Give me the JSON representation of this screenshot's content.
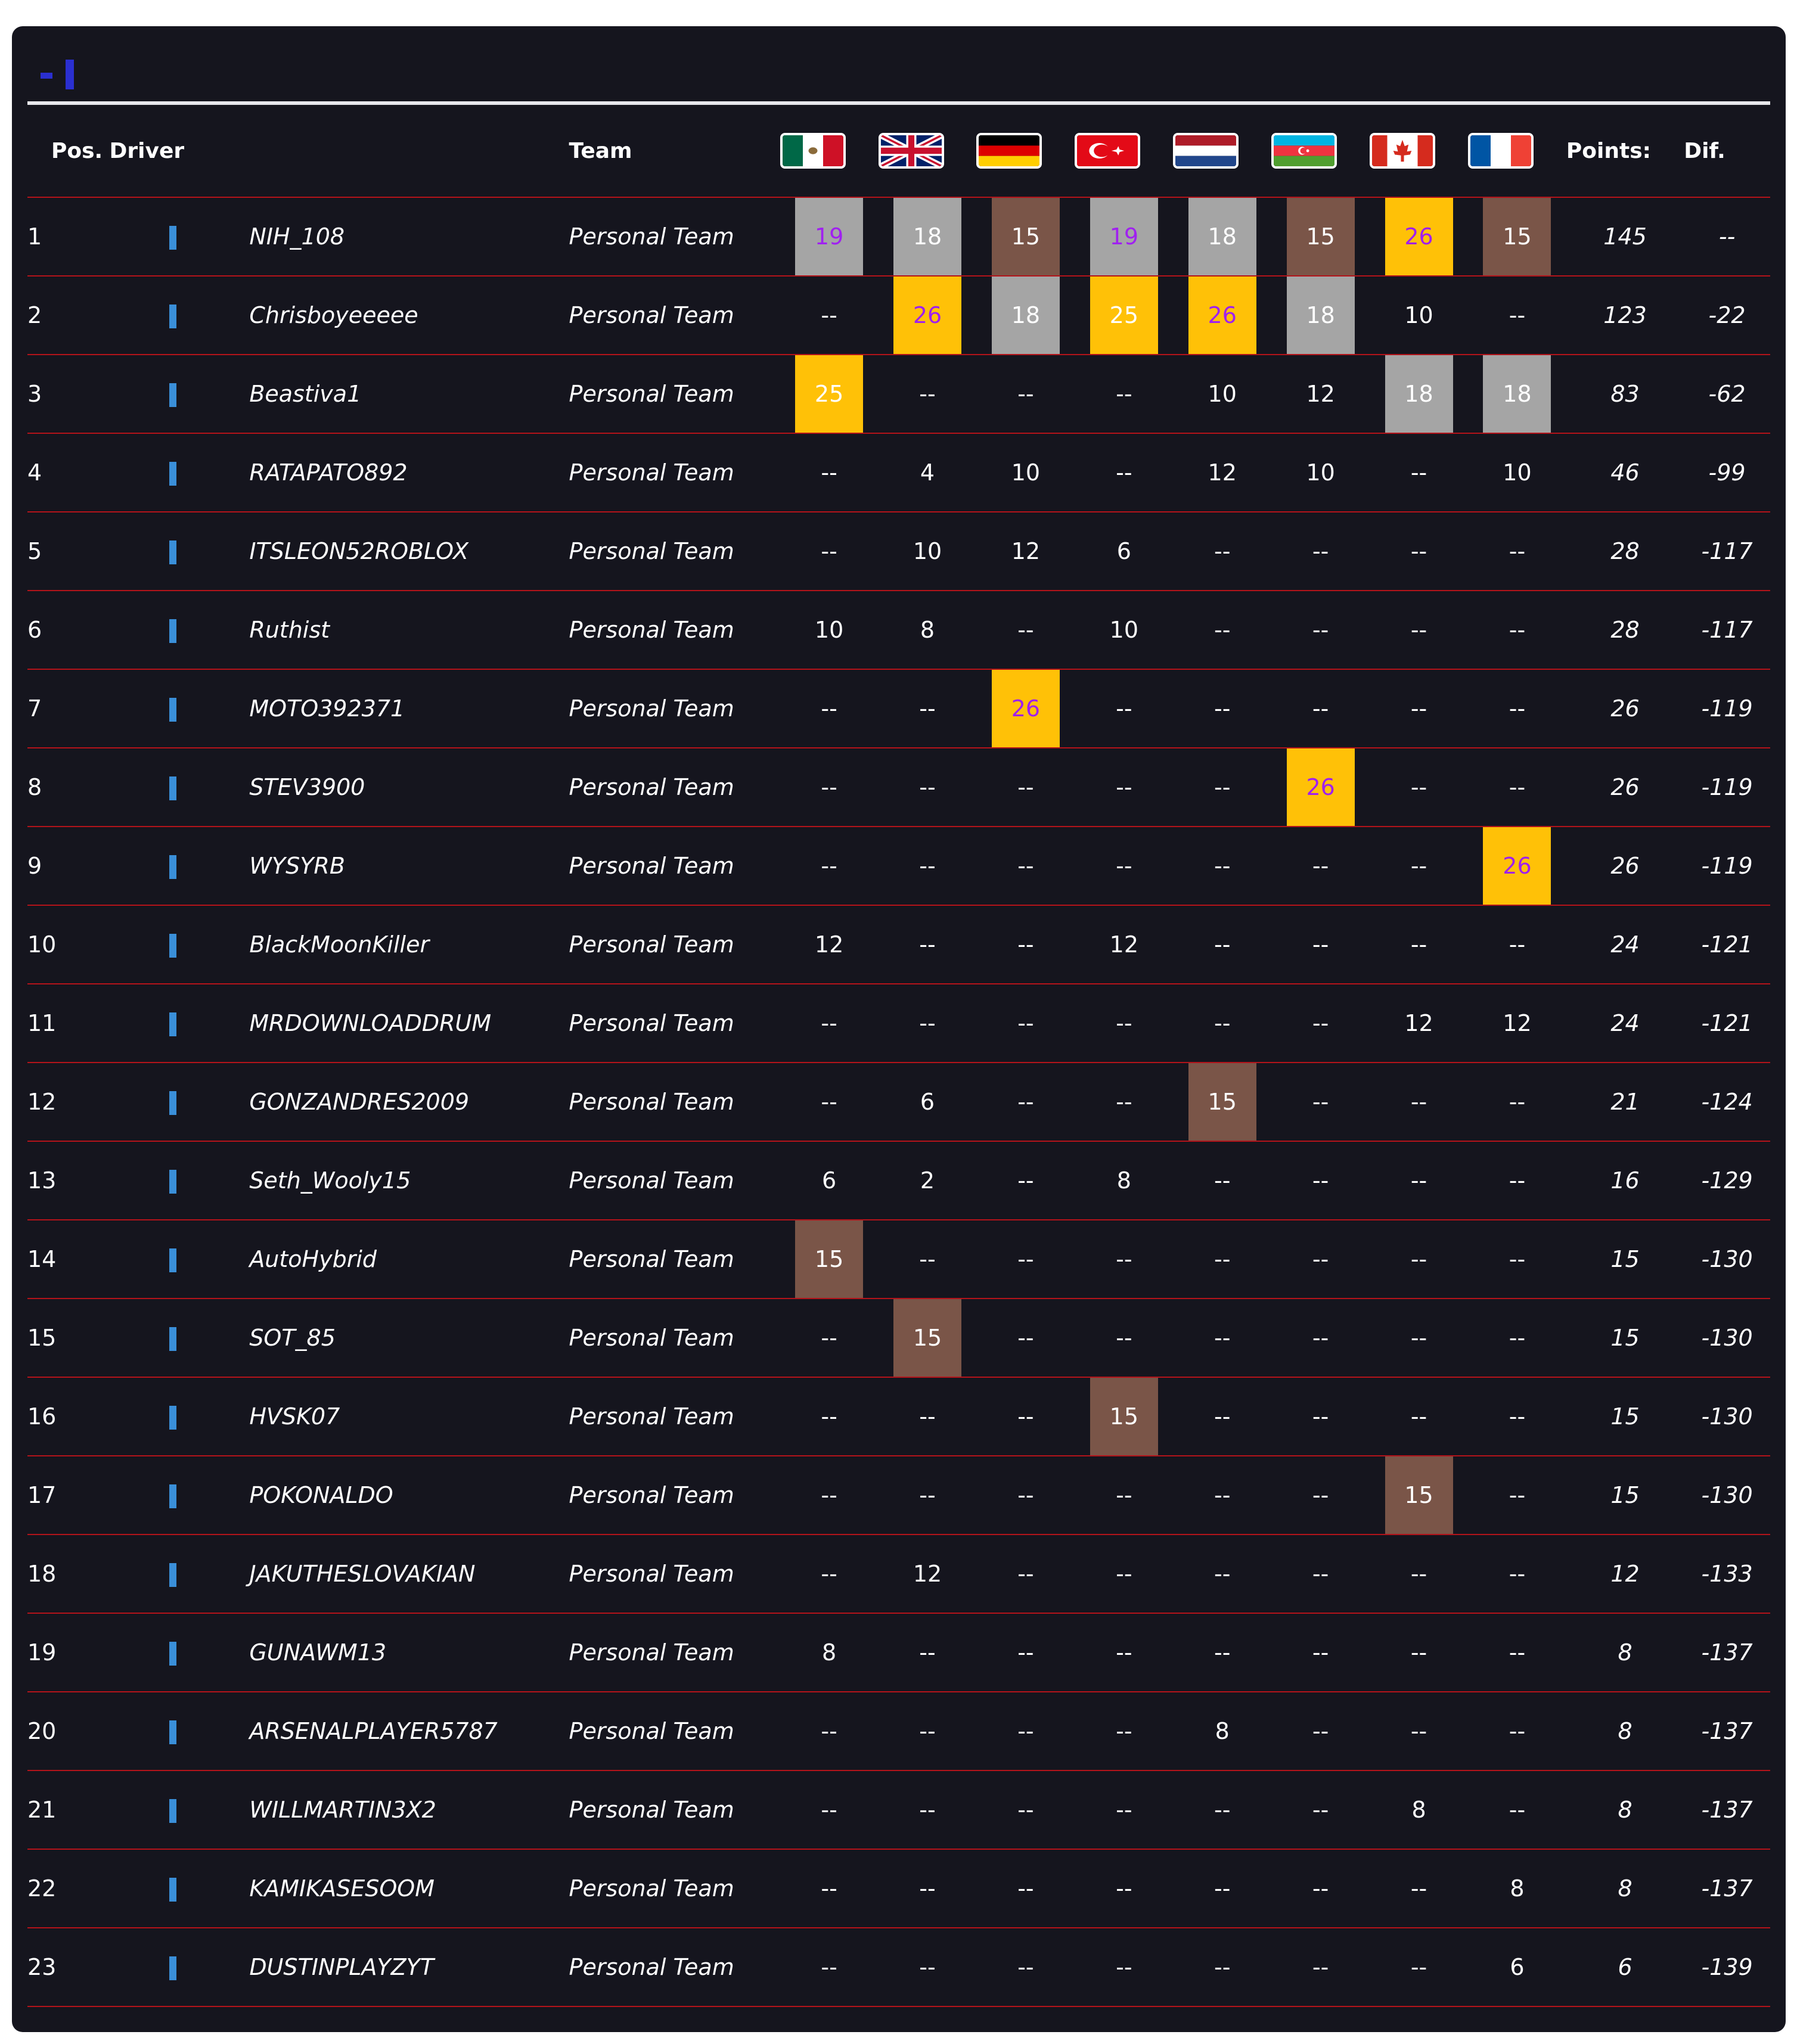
{
  "header": {
    "columns": {
      "pos": "Pos.",
      "driver": "Driver",
      "team": "Team",
      "points": "Points:",
      "dif": "Dif."
    }
  },
  "races": [
    {
      "flag": "mexico-flag-icon"
    },
    {
      "flag": "uk-flag-icon"
    },
    {
      "flag": "germany-flag-icon"
    },
    {
      "flag": "turkey-flag-icon"
    },
    {
      "flag": "netherlands-flag-icon"
    },
    {
      "flag": "azerbaijan-flag-icon"
    },
    {
      "flag": "canada-flag-icon"
    },
    {
      "flag": "france-flag-icon"
    }
  ],
  "colors": {
    "background": "#15151e",
    "row_divider": "#b3131a",
    "team_bar": "#3a8fd9",
    "first_place": "#ffc107",
    "second_place": "#a5a5a5",
    "third_place": "#7a5548",
    "fastest_lap_text": "#a020f0"
  },
  "rows": [
    {
      "pos": "1",
      "driver": "NIH_108",
      "team": "Personal Team",
      "results": [
        "19",
        "18",
        "15",
        "19",
        "18",
        "15",
        "26",
        "15"
      ],
      "styles": [
        "silver-purple",
        "silver",
        "bronze",
        "silver-purple",
        "silver",
        "bronze",
        "gold-purple",
        "bronze"
      ],
      "points": "145",
      "dif": "--"
    },
    {
      "pos": "2",
      "driver": "Chrisboyeeeee",
      "team": "Personal Team",
      "results": [
        "--",
        "26",
        "18",
        "25",
        "26",
        "18",
        "10",
        "--"
      ],
      "styles": [
        "",
        "gold-purple",
        "silver",
        "gold",
        "gold-purple",
        "silver",
        "",
        ""
      ],
      "points": "123",
      "dif": "-22"
    },
    {
      "pos": "3",
      "driver": "Beastiva1",
      "team": "Personal Team",
      "results": [
        "25",
        "--",
        "--",
        "--",
        "10",
        "12",
        "18",
        "18"
      ],
      "styles": [
        "gold",
        "",
        "",
        "",
        "",
        "",
        "silver",
        "silver"
      ],
      "points": "83",
      "dif": "-62"
    },
    {
      "pos": "4",
      "driver": "RATAPATO892",
      "team": "Personal Team",
      "results": [
        "--",
        "4",
        "10",
        "--",
        "12",
        "10",
        "--",
        "10"
      ],
      "styles": [
        "",
        "",
        "",
        "",
        "",
        "",
        "",
        ""
      ],
      "points": "46",
      "dif": "-99"
    },
    {
      "pos": "5",
      "driver": "ITSLEON52ROBLOX",
      "team": "Personal Team",
      "results": [
        "--",
        "10",
        "12",
        "6",
        "--",
        "--",
        "--",
        "--"
      ],
      "styles": [
        "",
        "",
        "",
        "",
        "",
        "",
        "",
        ""
      ],
      "points": "28",
      "dif": "-117"
    },
    {
      "pos": "6",
      "driver": "Ruthist",
      "team": "Personal Team",
      "results": [
        "10",
        "8",
        "--",
        "10",
        "--",
        "--",
        "--",
        "--"
      ],
      "styles": [
        "",
        "",
        "",
        "",
        "",
        "",
        "",
        ""
      ],
      "points": "28",
      "dif": "-117"
    },
    {
      "pos": "7",
      "driver": "MOTO392371",
      "team": "Personal Team",
      "results": [
        "--",
        "--",
        "26",
        "--",
        "--",
        "--",
        "--",
        "--"
      ],
      "styles": [
        "",
        "",
        "gold-purple",
        "",
        "",
        "",
        "",
        ""
      ],
      "points": "26",
      "dif": "-119"
    },
    {
      "pos": "8",
      "driver": "STEV3900",
      "team": "Personal Team",
      "results": [
        "--",
        "--",
        "--",
        "--",
        "--",
        "26",
        "--",
        "--"
      ],
      "styles": [
        "",
        "",
        "",
        "",
        "",
        "gold-purple",
        "",
        ""
      ],
      "points": "26",
      "dif": "-119"
    },
    {
      "pos": "9",
      "driver": "WYSYRB",
      "team": "Personal Team",
      "results": [
        "--",
        "--",
        "--",
        "--",
        "--",
        "--",
        "--",
        "26"
      ],
      "styles": [
        "",
        "",
        "",
        "",
        "",
        "",
        "",
        "gold-purple"
      ],
      "points": "26",
      "dif": "-119"
    },
    {
      "pos": "10",
      "driver": "BlackMoonKiller",
      "team": "Personal Team",
      "results": [
        "12",
        "--",
        "--",
        "12",
        "--",
        "--",
        "--",
        "--"
      ],
      "styles": [
        "",
        "",
        "",
        "",
        "",
        "",
        "",
        ""
      ],
      "points": "24",
      "dif": "-121"
    },
    {
      "pos": "11",
      "driver": "MRDOWNLOADDRUM",
      "team": "Personal Team",
      "results": [
        "--",
        "--",
        "--",
        "--",
        "--",
        "--",
        "12",
        "12"
      ],
      "styles": [
        "",
        "",
        "",
        "",
        "",
        "",
        "",
        ""
      ],
      "points": "24",
      "dif": "-121"
    },
    {
      "pos": "12",
      "driver": "GONZANDRES2009",
      "team": "Personal Team",
      "results": [
        "--",
        "6",
        "--",
        "--",
        "15",
        "--",
        "--",
        "--"
      ],
      "styles": [
        "",
        "",
        "",
        "",
        "bronze",
        "",
        "",
        ""
      ],
      "points": "21",
      "dif": "-124"
    },
    {
      "pos": "13",
      "driver": "Seth_Wooly15",
      "team": "Personal Team",
      "results": [
        "6",
        "2",
        "--",
        "8",
        "--",
        "--",
        "--",
        "--"
      ],
      "styles": [
        "",
        "",
        "",
        "",
        "",
        "",
        "",
        ""
      ],
      "points": "16",
      "dif": "-129"
    },
    {
      "pos": "14",
      "driver": "AutoHybrid",
      "team": "Personal Team",
      "results": [
        "15",
        "--",
        "--",
        "--",
        "--",
        "--",
        "--",
        "--"
      ],
      "styles": [
        "bronze",
        "",
        "",
        "",
        "",
        "",
        "",
        ""
      ],
      "points": "15",
      "dif": "-130"
    },
    {
      "pos": "15",
      "driver": "SOT_85",
      "team": "Personal Team",
      "results": [
        "--",
        "15",
        "--",
        "--",
        "--",
        "--",
        "--",
        "--"
      ],
      "styles": [
        "",
        "bronze",
        "",
        "",
        "",
        "",
        "",
        ""
      ],
      "points": "15",
      "dif": "-130"
    },
    {
      "pos": "16",
      "driver": "HVSK07",
      "team": "Personal Team",
      "results": [
        "--",
        "--",
        "--",
        "15",
        "--",
        "--",
        "--",
        "--"
      ],
      "styles": [
        "",
        "",
        "",
        "bronze",
        "",
        "",
        "",
        ""
      ],
      "points": "15",
      "dif": "-130"
    },
    {
      "pos": "17",
      "driver": "POKONALDO",
      "team": "Personal Team",
      "results": [
        "--",
        "--",
        "--",
        "--",
        "--",
        "--",
        "15",
        "--"
      ],
      "styles": [
        "",
        "",
        "",
        "",
        "",
        "",
        "bronze",
        ""
      ],
      "points": "15",
      "dif": "-130"
    },
    {
      "pos": "18",
      "driver": "JAKUTHESLOVAKIAN",
      "team": "Personal Team",
      "results": [
        "--",
        "12",
        "--",
        "--",
        "--",
        "--",
        "--",
        "--"
      ],
      "styles": [
        "",
        "",
        "",
        "",
        "",
        "",
        "",
        ""
      ],
      "points": "12",
      "dif": "-133"
    },
    {
      "pos": "19",
      "driver": "GUNAWM13",
      "team": "Personal Team",
      "results": [
        "8",
        "--",
        "--",
        "--",
        "--",
        "--",
        "--",
        "--"
      ],
      "styles": [
        "",
        "",
        "",
        "",
        "",
        "",
        "",
        ""
      ],
      "points": "8",
      "dif": "-137"
    },
    {
      "pos": "20",
      "driver": "ARSENALPLAYER5787",
      "team": "Personal Team",
      "results": [
        "--",
        "--",
        "--",
        "--",
        "8",
        "--",
        "--",
        "--"
      ],
      "styles": [
        "",
        "",
        "",
        "",
        "",
        "",
        "",
        ""
      ],
      "points": "8",
      "dif": "-137"
    },
    {
      "pos": "21",
      "driver": "WILLMARTIN3X2",
      "team": "Personal Team",
      "results": [
        "--",
        "--",
        "--",
        "--",
        "--",
        "--",
        "8",
        "--"
      ],
      "styles": [
        "",
        "",
        "",
        "",
        "",
        "",
        "",
        ""
      ],
      "points": "8",
      "dif": "-137"
    },
    {
      "pos": "22",
      "driver": "KAMIKASESOOM",
      "team": "Personal Team",
      "results": [
        "--",
        "--",
        "--",
        "--",
        "--",
        "--",
        "--",
        "8"
      ],
      "styles": [
        "",
        "",
        "",
        "",
        "",
        "",
        "",
        ""
      ],
      "points": "8",
      "dif": "-137"
    },
    {
      "pos": "23",
      "driver": "DUSTINPLAYZYT",
      "team": "Personal Team",
      "results": [
        "--",
        "--",
        "--",
        "--",
        "--",
        "--",
        "--",
        "6"
      ],
      "styles": [
        "",
        "",
        "",
        "",
        "",
        "",
        "",
        ""
      ],
      "points": "6",
      "dif": "-139"
    }
  ]
}
